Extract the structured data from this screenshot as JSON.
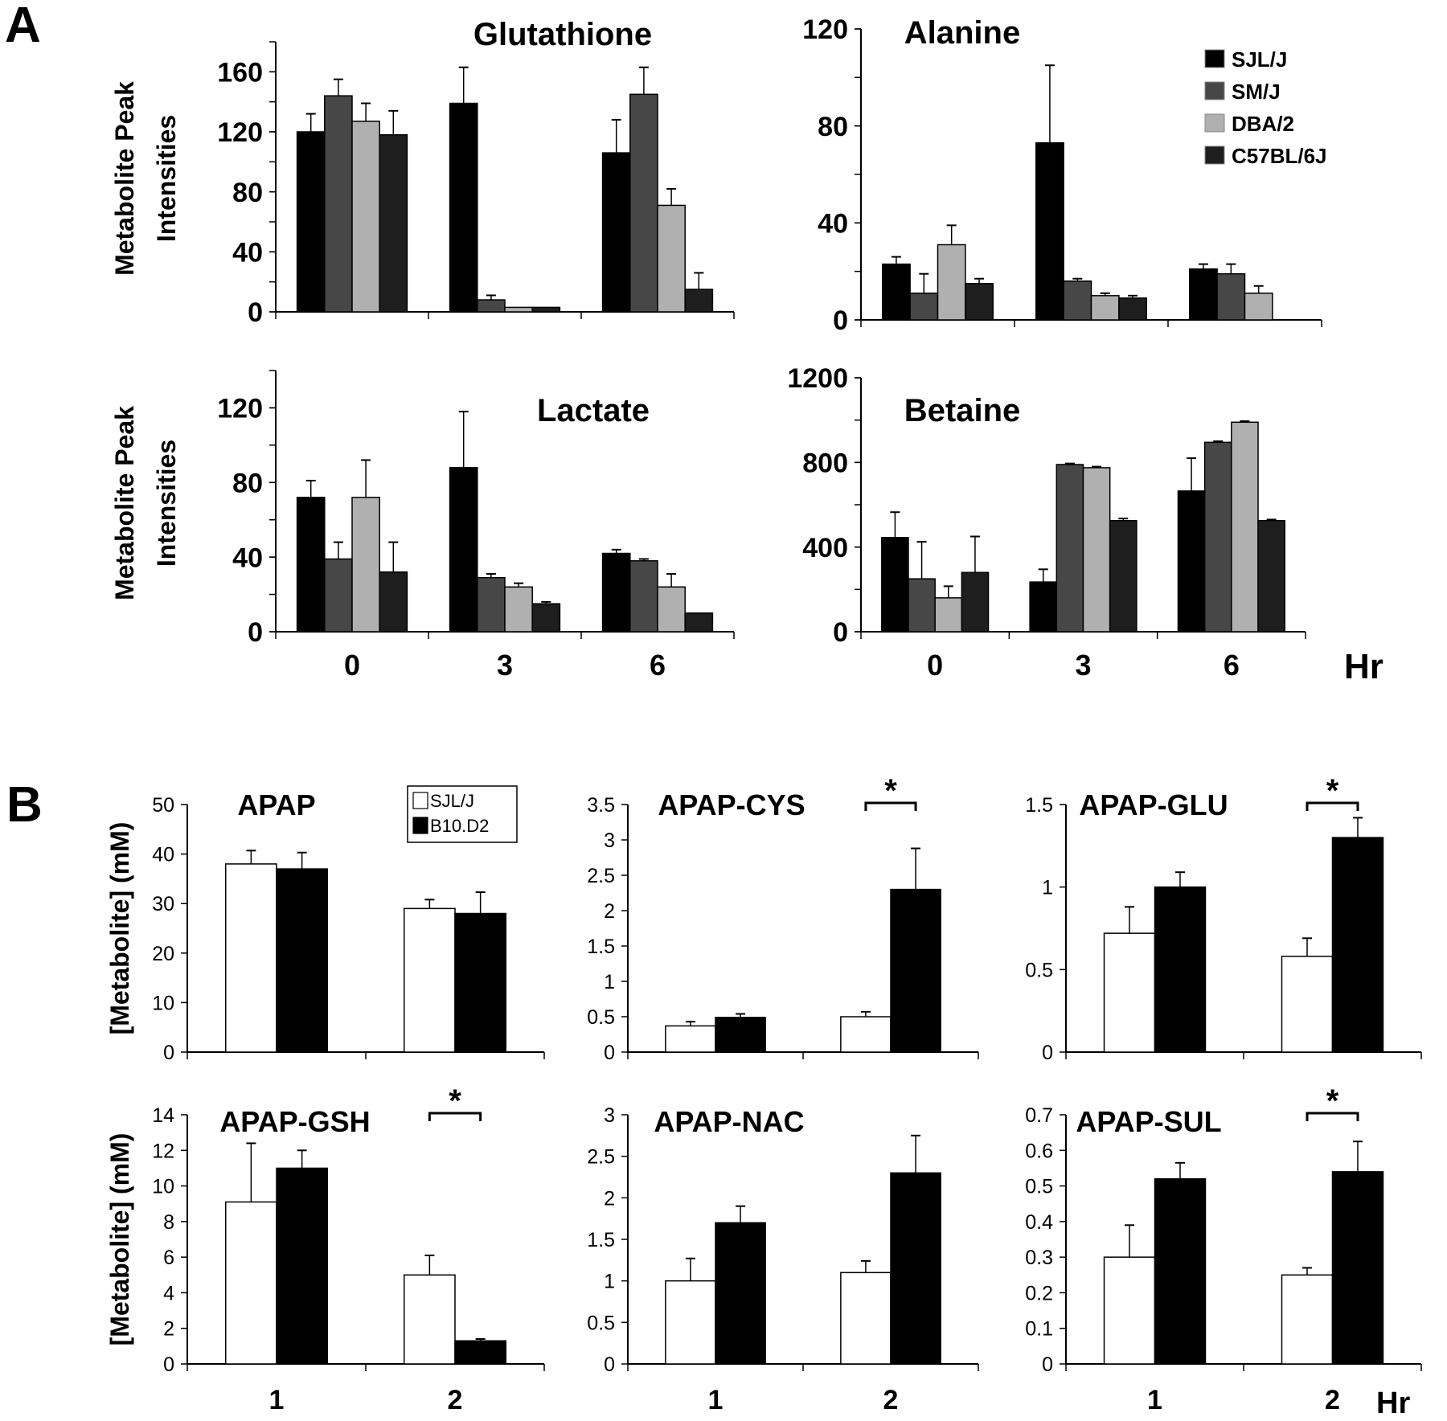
{
  "panel_labels": {
    "a": "A",
    "b": "B"
  },
  "panel_a": {
    "ylabel_line1": "Metabolite Peak",
    "ylabel_line2": "Intensities",
    "xunit": "Hr",
    "legend": [
      "SJL/J",
      "SM/J",
      "DBA/2",
      "C57BL/6J"
    ],
    "colors": [
      "#000000",
      "#474747",
      "#b0b0b0",
      "#1e1e1e"
    ]
  },
  "panel_b": {
    "ylabel": "[Metabolite] (mM)",
    "xunit": "Hr",
    "legend": [
      "SJL/J",
      "B10.D2"
    ],
    "colors": [
      "#ffffff",
      "#000000"
    ],
    "significance_label": "*"
  },
  "chart_data": [
    {
      "type": "bar",
      "title": "Glutathione",
      "categories": [
        "0",
        "3",
        "6"
      ],
      "ylim": [
        0,
        180
      ],
      "yticks": [
        0,
        40,
        80,
        120,
        160
      ],
      "minor_step": 20,
      "show_xlabels": false,
      "series": [
        {
          "name": "SJL/J",
          "values": [
            120,
            139,
            106
          ],
          "errors": [
            12,
            24,
            22
          ]
        },
        {
          "name": "SM/J",
          "values": [
            144,
            8,
            145
          ],
          "errors": [
            11,
            3,
            18
          ]
        },
        {
          "name": "DBA/2",
          "values": [
            127,
            3,
            71
          ],
          "errors": [
            12,
            0,
            11
          ]
        },
        {
          "name": "C57BL/6J",
          "values": [
            118,
            3,
            15
          ],
          "errors": [
            16,
            0,
            11
          ]
        }
      ]
    },
    {
      "type": "bar",
      "title": "Alanine",
      "categories": [
        "0",
        "3",
        "6"
      ],
      "ylim": [
        0,
        120
      ],
      "yticks": [
        0,
        40,
        80,
        120
      ],
      "minor_step": 20,
      "show_xlabels": false,
      "series": [
        {
          "name": "SJL/J",
          "values": [
            23,
            73,
            21
          ],
          "errors": [
            3,
            32,
            2
          ]
        },
        {
          "name": "SM/J",
          "values": [
            11,
            16,
            19
          ],
          "errors": [
            8,
            1,
            4
          ]
        },
        {
          "name": "DBA/2",
          "values": [
            31,
            10,
            11
          ],
          "errors": [
            8,
            1,
            3
          ]
        },
        {
          "name": "C57BL/6J",
          "values": [
            15,
            9,
            0
          ],
          "errors": [
            2,
            1,
            0
          ]
        }
      ]
    },
    {
      "type": "bar",
      "title": "Lactate",
      "categories": [
        "0",
        "3",
        "6"
      ],
      "ylim": [
        0,
        140
      ],
      "yticks": [
        0,
        40,
        80,
        120
      ],
      "minor_step": 20,
      "show_xlabels": true,
      "series": [
        {
          "name": "SJL/J",
          "values": [
            72,
            88,
            42
          ],
          "errors": [
            9,
            30,
            2
          ]
        },
        {
          "name": "SM/J",
          "values": [
            39,
            29,
            38
          ],
          "errors": [
            9,
            2,
            1
          ]
        },
        {
          "name": "DBA/2",
          "values": [
            72,
            24,
            24
          ],
          "errors": [
            20,
            2,
            7
          ]
        },
        {
          "name": "C57BL/6J",
          "values": [
            32,
            15,
            10
          ],
          "errors": [
            16,
            1,
            0
          ]
        }
      ]
    },
    {
      "type": "bar",
      "title": "Betaine",
      "categories": [
        "0",
        "3",
        "6"
      ],
      "ylim": [
        0,
        1200
      ],
      "yticks": [
        0,
        400,
        800,
        1200
      ],
      "minor_step": 200,
      "show_xlabels": true,
      "series": [
        {
          "name": "SJL/J",
          "values": [
            445,
            235,
            665
          ],
          "errors": [
            120,
            60,
            155
          ]
        },
        {
          "name": "SM/J",
          "values": [
            250,
            790,
            895
          ],
          "errors": [
            175,
            5,
            5
          ]
        },
        {
          "name": "DBA/2",
          "values": [
            160,
            775,
            990
          ],
          "errors": [
            55,
            5,
            5
          ]
        },
        {
          "name": "C57BL/6J",
          "values": [
            280,
            525,
            525
          ],
          "errors": [
            170,
            10,
            5
          ]
        }
      ]
    },
    {
      "type": "bar",
      "title": "APAP",
      "categories": [
        "1",
        "2"
      ],
      "ylim": [
        0,
        50
      ],
      "yticks": [
        0,
        10,
        20,
        30,
        40,
        50
      ],
      "ticklabels": [
        "0",
        "10",
        "20",
        "30",
        "40",
        "50"
      ],
      "show_xlabels": false,
      "significant": [],
      "series": [
        {
          "name": "SJL/J",
          "values": [
            38,
            29
          ],
          "errors": [
            2.7,
            1.8
          ]
        },
        {
          "name": "B10.D2",
          "values": [
            37,
            28
          ],
          "errors": [
            3.3,
            4.3
          ]
        }
      ]
    },
    {
      "type": "bar",
      "title": "APAP-CYS",
      "categories": [
        "1",
        "2"
      ],
      "ylim": [
        0,
        3.5
      ],
      "yticks": [
        0,
        0.5,
        1,
        1.5,
        2,
        2.5,
        3,
        3.5
      ],
      "ticklabels": [
        "0",
        "0.5",
        "1",
        "1.5",
        "2",
        "2.5",
        "3",
        "3.5"
      ],
      "show_xlabels": false,
      "significant": [
        1
      ],
      "series": [
        {
          "name": "SJL/J",
          "values": [
            0.37,
            0.5
          ],
          "errors": [
            0.06,
            0.07
          ]
        },
        {
          "name": "B10.D2",
          "values": [
            0.49,
            2.3
          ],
          "errors": [
            0.05,
            0.58
          ]
        }
      ]
    },
    {
      "type": "bar",
      "title": "APAP-GLU",
      "categories": [
        "1",
        "2"
      ],
      "ylim": [
        0,
        1.5
      ],
      "yticks": [
        0,
        0.5,
        1,
        1.5
      ],
      "ticklabels": [
        "0",
        "0.5",
        "1",
        "1.5"
      ],
      "show_xlabels": false,
      "significant": [
        1
      ],
      "series": [
        {
          "name": "SJL/J",
          "values": [
            0.72,
            0.58
          ],
          "errors": [
            0.16,
            0.11
          ]
        },
        {
          "name": "B10.D2",
          "values": [
            1.0,
            1.3
          ],
          "errors": [
            0.09,
            0.12
          ]
        }
      ]
    },
    {
      "type": "bar",
      "title": "APAP-GSH",
      "categories": [
        "1",
        "2"
      ],
      "ylim": [
        0,
        14
      ],
      "yticks": [
        0,
        2,
        4,
        6,
        8,
        10,
        12,
        14
      ],
      "ticklabels": [
        "0",
        "2",
        "4",
        "6",
        "8",
        "10",
        "12",
        "14"
      ],
      "show_xlabels": true,
      "significant": [
        1
      ],
      "series": [
        {
          "name": "SJL/J",
          "values": [
            9.1,
            5.0
          ],
          "errors": [
            3.3,
            1.1
          ]
        },
        {
          "name": "B10.D2",
          "values": [
            11,
            1.3
          ],
          "errors": [
            1.0,
            0.1
          ]
        }
      ]
    },
    {
      "type": "bar",
      "title": "APAP-NAC",
      "categories": [
        "1",
        "2"
      ],
      "ylim": [
        0,
        3
      ],
      "yticks": [
        0,
        0.5,
        1,
        1.5,
        2,
        2.5,
        3
      ],
      "ticklabels": [
        "0",
        "0.5",
        "1",
        "1.5",
        "2",
        "2.5",
        "3"
      ],
      "show_xlabels": true,
      "significant": [],
      "series": [
        {
          "name": "SJL/J",
          "values": [
            1.0,
            1.1
          ],
          "errors": [
            0.27,
            0.14
          ]
        },
        {
          "name": "B10.D2",
          "values": [
            1.7,
            2.3
          ],
          "errors": [
            0.2,
            0.45
          ]
        }
      ]
    },
    {
      "type": "bar",
      "title": "APAP-SUL",
      "categories": [
        "1",
        "2"
      ],
      "ylim": [
        0,
        0.7
      ],
      "yticks": [
        0,
        0.1,
        0.2,
        0.3,
        0.4,
        0.5,
        0.6,
        0.7
      ],
      "ticklabels": [
        "0",
        "0.1",
        "0.2",
        "0.3",
        "0.4",
        "0.5",
        "0.6",
        "0.7"
      ],
      "show_xlabels": true,
      "significant": [
        1
      ],
      "series": [
        {
          "name": "SJL/J",
          "values": [
            0.3,
            0.25
          ],
          "errors": [
            0.09,
            0.02
          ]
        },
        {
          "name": "B10.D2",
          "values": [
            0.52,
            0.54
          ],
          "errors": [
            0.045,
            0.085
          ]
        }
      ]
    }
  ]
}
